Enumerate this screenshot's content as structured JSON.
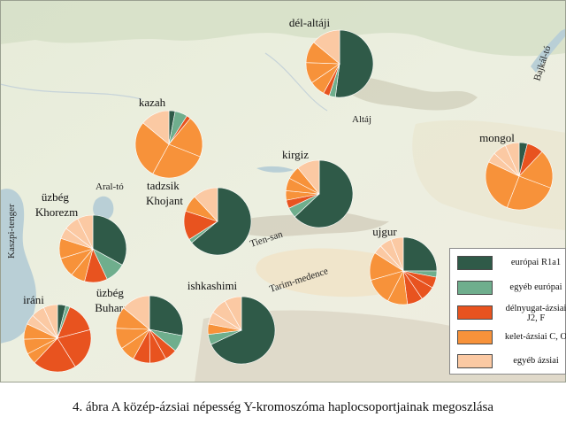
{
  "colors": {
    "europai_R1a1": "#2f5a48",
    "egyeb_europai": "#6fae8d",
    "delnyugat_azsiai": "#e8531f",
    "kelet_azsiai": "#f7923a",
    "egyeb_azsiai": "#fbc9a3"
  },
  "legend": [
    {
      "key": "europai_R1a1",
      "label": "európai R1a1"
    },
    {
      "key": "egyeb_europai",
      "label": "egyéb európai"
    },
    {
      "key": "delnyugat_azsiai",
      "label": "délnyugat-ázsiai\nJ2, F"
    },
    {
      "key": "kelet_azsiai",
      "label": "kelet-ázsiai C, O"
    },
    {
      "key": "egyeb_azsiai",
      "label": "egyéb ázsiai"
    }
  ],
  "places": {
    "aral": "Aral-tó",
    "kaszpi": "Kaszpi-tenger",
    "altaj": "Altáj",
    "tiensan": "Tien-san",
    "tarim": "Tarim-medence",
    "bajkal": "Bajkál-tó"
  },
  "chart_data": {
    "type": "pie",
    "note_order": [
      "európai R1a1",
      "egyéb európai",
      "délnyugat-ázsiai J2, F",
      "kelet-ázsiai C, O",
      "egyéb ázsiai"
    ],
    "groups": [
      {
        "id": "del-altaji",
        "label": "dél-altáji",
        "values": [
          52,
          3,
          3,
          28,
          14
        ]
      },
      {
        "id": "kazah",
        "label": "kazah",
        "values": [
          3,
          6,
          2,
          75,
          14
        ]
      },
      {
        "id": "kirgiz",
        "label": "kirgiz",
        "values": [
          63,
          5,
          4,
          17,
          11
        ]
      },
      {
        "id": "tadzsik",
        "label": "tadzsik\nKhojant",
        "values": [
          64,
          2,
          14,
          8,
          12
        ]
      },
      {
        "id": "mongol",
        "label": "mongol",
        "values": [
          4,
          0,
          8,
          70,
          18
        ]
      },
      {
        "id": "uzbeg-khorezm",
        "label": "üzbég\nKhorezm",
        "values": [
          33,
          10,
          11,
          26,
          20
        ]
      },
      {
        "id": "ujgur",
        "label": "ujgur",
        "values": [
          25,
          3,
          20,
          36,
          16
        ]
      },
      {
        "id": "irani",
        "label": "iráni",
        "values": [
          4,
          2,
          56,
          20,
          18
        ]
      },
      {
        "id": "uzbeg-buhara",
        "label": "üzbég\nBuhara",
        "values": [
          28,
          8,
          22,
          28,
          14
        ]
      },
      {
        "id": "ishkashimi",
        "label": "ishkashimi",
        "values": [
          68,
          5,
          0,
          5,
          22
        ]
      }
    ]
  },
  "caption": "4. ábra  A közép-ázsiai népesség Y-kromoszóma haplocsoportjainak megoszlása"
}
